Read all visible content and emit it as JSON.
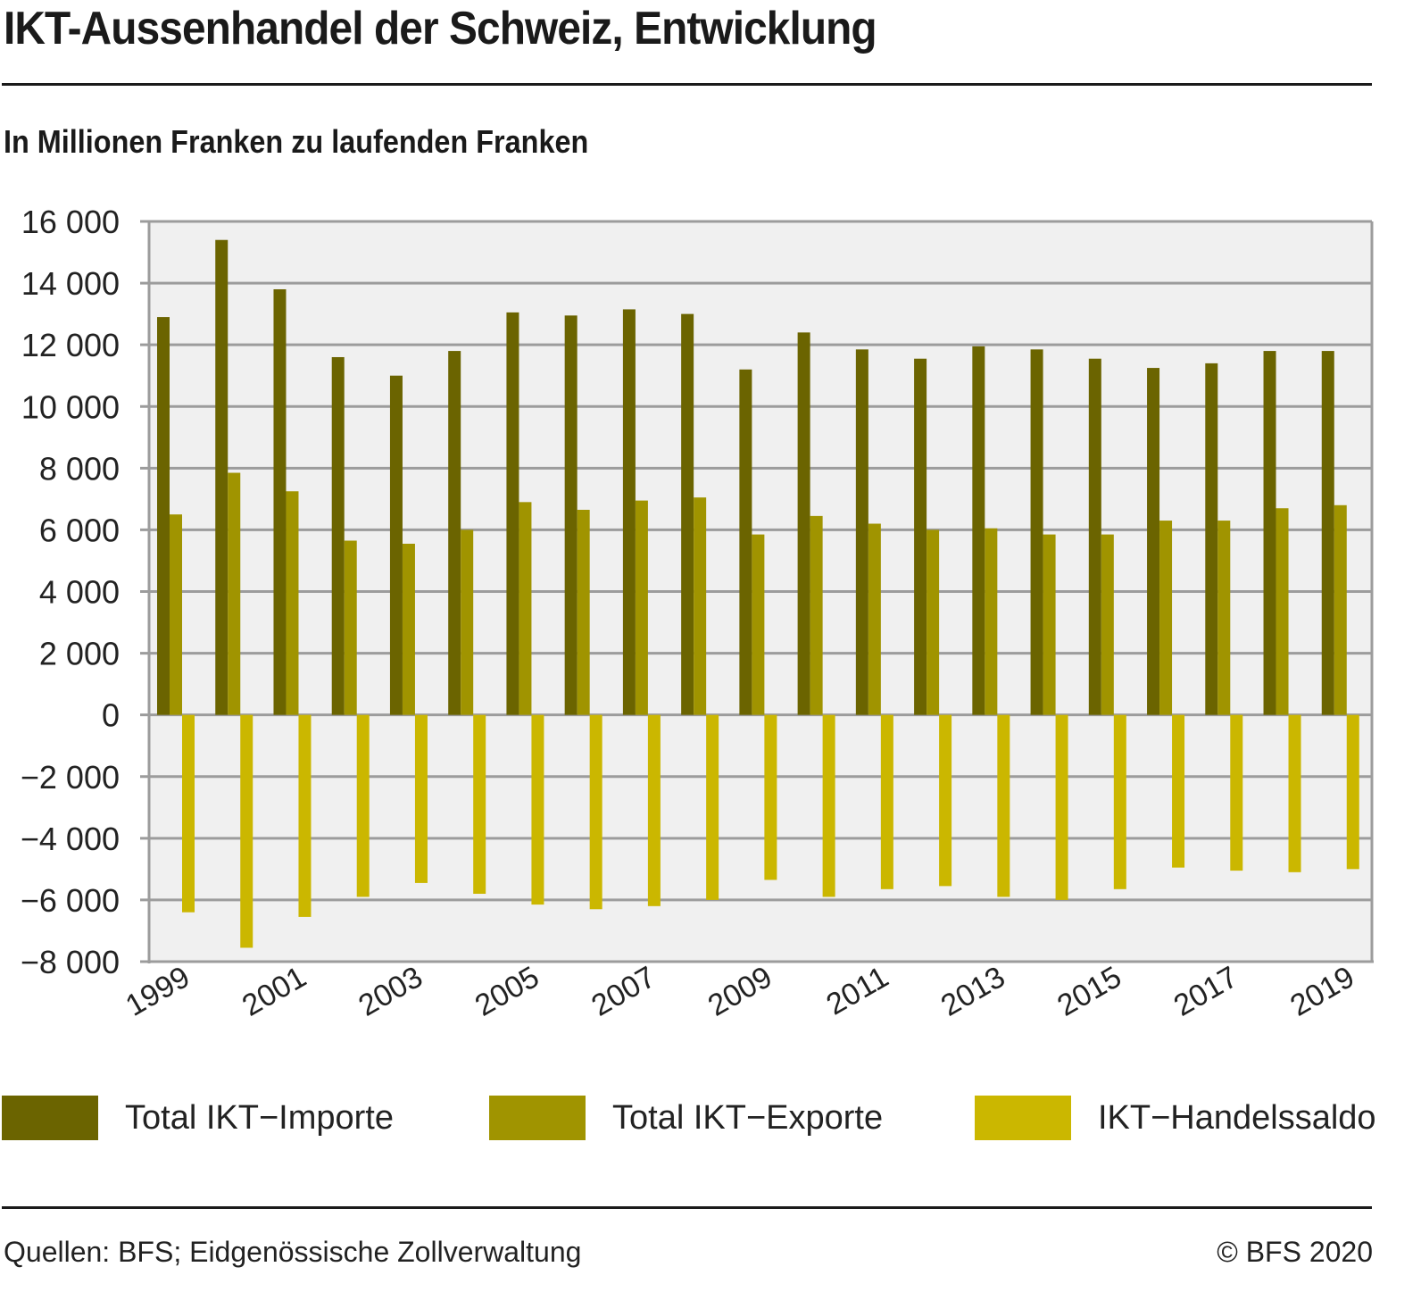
{
  "header": {
    "title": "IKT-Aussenhandel der Schweiz, Entwicklung",
    "subtitle": "In Millionen Franken zu laufenden Franken"
  },
  "footer": {
    "source": "Quellen: BFS; Eidgenössische Zollverwaltung",
    "copyright": "© BFS 2020"
  },
  "chart_data": {
    "type": "bar",
    "title": "IKT-Aussenhandel der Schweiz, Entwicklung",
    "subtitle": "In Millionen Franken zu laufenden Franken",
    "xlabel": "",
    "ylabel": "",
    "ylim": [
      -8000,
      16000
    ],
    "yticks": [
      16000,
      14000,
      12000,
      10000,
      8000,
      6000,
      4000,
      2000,
      0,
      -2000,
      -4000,
      -6000,
      -8000
    ],
    "ytick_labels": [
      "16 000",
      "14 000",
      "12 000",
      "10 000",
      "8 000",
      "6 000",
      "4 000",
      "2 000",
      "0",
      "−2 000",
      "−4 000",
      "−6 000",
      "−8 000"
    ],
    "categories": [
      "1999",
      "2000",
      "2001",
      "2002",
      "2003",
      "2004",
      "2005",
      "2006",
      "2007",
      "2008",
      "2009",
      "2010",
      "2011",
      "2012",
      "2013",
      "2014",
      "2015",
      "2016",
      "2017",
      "2018",
      "2019"
    ],
    "xtick_labels": [
      "1999",
      "2001",
      "2003",
      "2005",
      "2007",
      "2009",
      "2011",
      "2013",
      "2015",
      "2017",
      "2019"
    ],
    "grid": true,
    "legend_position": "bottom",
    "series": [
      {
        "name": "Total IKT−Importe",
        "color": "#6b6400",
        "values": [
          12900,
          15400,
          13800,
          11600,
          11000,
          11800,
          13050,
          12950,
          13150,
          13000,
          11200,
          12400,
          11850,
          11550,
          11950,
          11850,
          11550,
          11250,
          11400,
          11800,
          11800
        ]
      },
      {
        "name": "Total IKT−Exporte",
        "color": "#a09400",
        "values": [
          6500,
          7850,
          7250,
          5650,
          5550,
          6000,
          6900,
          6650,
          6950,
          7050,
          5850,
          6450,
          6200,
          6000,
          6050,
          5850,
          5850,
          6300,
          6300,
          6700,
          6800
        ]
      },
      {
        "name": "IKT−Handelssaldo",
        "color": "#cbb700",
        "values": [
          -6400,
          -7550,
          -6550,
          -5900,
          -5450,
          -5800,
          -6150,
          -6300,
          -6200,
          -6000,
          -5350,
          -5900,
          -5650,
          -5550,
          -5900,
          -6000,
          -5650,
          -4950,
          -5050,
          -5100,
          -5000
        ]
      }
    ]
  }
}
